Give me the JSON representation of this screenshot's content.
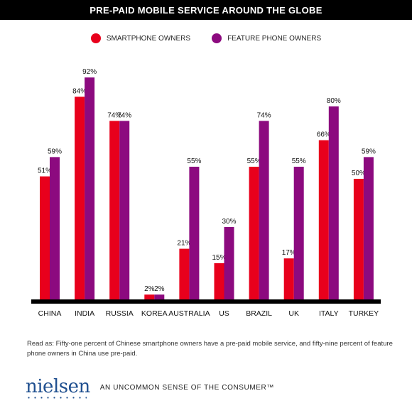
{
  "chart_data": {
    "type": "bar",
    "title": "PRE-PAID MOBILE SERVICE AROUND THE GLOBE",
    "categories": [
      "CHINA",
      "INDIA",
      "RUSSIA",
      "KOREA",
      "AUSTRALIA",
      "US",
      "BRAZIL",
      "UK",
      "ITALY",
      "TURKEY"
    ],
    "series": [
      {
        "name": "SMARTPHONE OWNERS",
        "color": "#e8001c",
        "values": [
          51,
          84,
          74,
          2,
          21,
          15,
          55,
          17,
          66,
          50
        ]
      },
      {
        "name": "FEATURE PHONE OWNERS",
        "color": "#8c0a7f",
        "values": [
          59,
          92,
          74,
          2,
          55,
          30,
          74,
          55,
          80,
          59
        ]
      }
    ],
    "value_suffix": "%",
    "ylim": [
      0,
      100
    ],
    "grid": false,
    "legend_position": "top"
  },
  "note": "Read as: Fifty-one percent of Chinese smartphone owners have a pre-paid mobile service, and fifty-nine percent of feature phone owners in China use pre-paid.",
  "footer": {
    "logo_text": "nielsen",
    "tagline": "AN UNCOMMON SENSE OF THE CONSUMER™"
  },
  "colors": {
    "smartphone": "#e8001c",
    "feature_phone": "#8c0a7f",
    "axis_bar": "#000000"
  }
}
